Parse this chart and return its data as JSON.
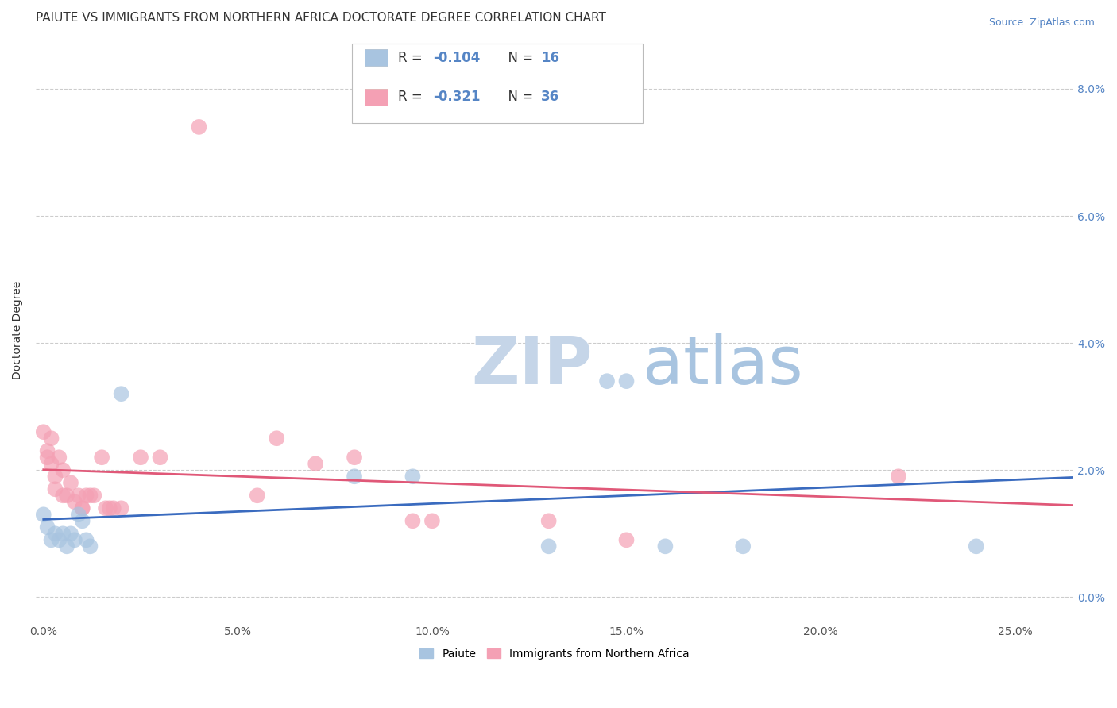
{
  "title": "PAIUTE VS IMMIGRANTS FROM NORTHERN AFRICA DOCTORATE DEGREE CORRELATION CHART",
  "source": "Source: ZipAtlas.com",
  "ylabel": "Doctorate Degree",
  "x_ticks": [
    0.0,
    0.05,
    0.1,
    0.15,
    0.2,
    0.25
  ],
  "x_tick_labels": [
    "0.0%",
    "5.0%",
    "10.0%",
    "15.0%",
    "20.0%",
    "25.0%"
  ],
  "y_ticks": [
    0.0,
    0.02,
    0.04,
    0.06,
    0.08
  ],
  "y_tick_labels": [
    "0.0%",
    "2.0%",
    "4.0%",
    "6.0%",
    "8.0%"
  ],
  "xlim": [
    -0.002,
    0.265
  ],
  "ylim": [
    -0.004,
    0.088
  ],
  "paiute_color": "#a8c4e0",
  "immigrant_color": "#f4a0b4",
  "paiute_line_color": "#3a6bbf",
  "immigrant_line_color": "#e05878",
  "r_value_color": "#5585c5",
  "n_value_color": "#5585c5",
  "grid_color": "#cccccc",
  "background_color": "#ffffff",
  "title_fontsize": 11,
  "axis_label_fontsize": 10,
  "tick_fontsize": 10,
  "source_fontsize": 9,
  "watermark_zip_color": "#c5d5e8",
  "watermark_atlas_color": "#a8c4e0",
  "watermark_fontsize": 60,
  "paiute_x": [
    0.0,
    0.001,
    0.002,
    0.003,
    0.004,
    0.005,
    0.006,
    0.007,
    0.008,
    0.009,
    0.01,
    0.011,
    0.012,
    0.02,
    0.08,
    0.095,
    0.13,
    0.145,
    0.15,
    0.16,
    0.18,
    0.24
  ],
  "paiute_y": [
    0.013,
    0.011,
    0.009,
    0.01,
    0.009,
    0.01,
    0.008,
    0.01,
    0.009,
    0.013,
    0.012,
    0.009,
    0.008,
    0.032,
    0.019,
    0.019,
    0.008,
    0.034,
    0.034,
    0.008,
    0.008,
    0.008
  ],
  "immigrant_x": [
    0.0,
    0.001,
    0.001,
    0.002,
    0.002,
    0.003,
    0.003,
    0.004,
    0.005,
    0.005,
    0.006,
    0.007,
    0.008,
    0.009,
    0.01,
    0.01,
    0.011,
    0.012,
    0.013,
    0.015,
    0.016,
    0.017,
    0.018,
    0.02,
    0.025,
    0.03,
    0.04,
    0.055,
    0.06,
    0.07,
    0.08,
    0.095,
    0.1,
    0.13,
    0.15,
    0.22
  ],
  "immigrant_y": [
    0.026,
    0.023,
    0.022,
    0.025,
    0.021,
    0.019,
    0.017,
    0.022,
    0.02,
    0.016,
    0.016,
    0.018,
    0.015,
    0.016,
    0.014,
    0.014,
    0.016,
    0.016,
    0.016,
    0.022,
    0.014,
    0.014,
    0.014,
    0.014,
    0.022,
    0.022,
    0.074,
    0.016,
    0.025,
    0.021,
    0.022,
    0.012,
    0.012,
    0.012,
    0.009,
    0.019
  ]
}
